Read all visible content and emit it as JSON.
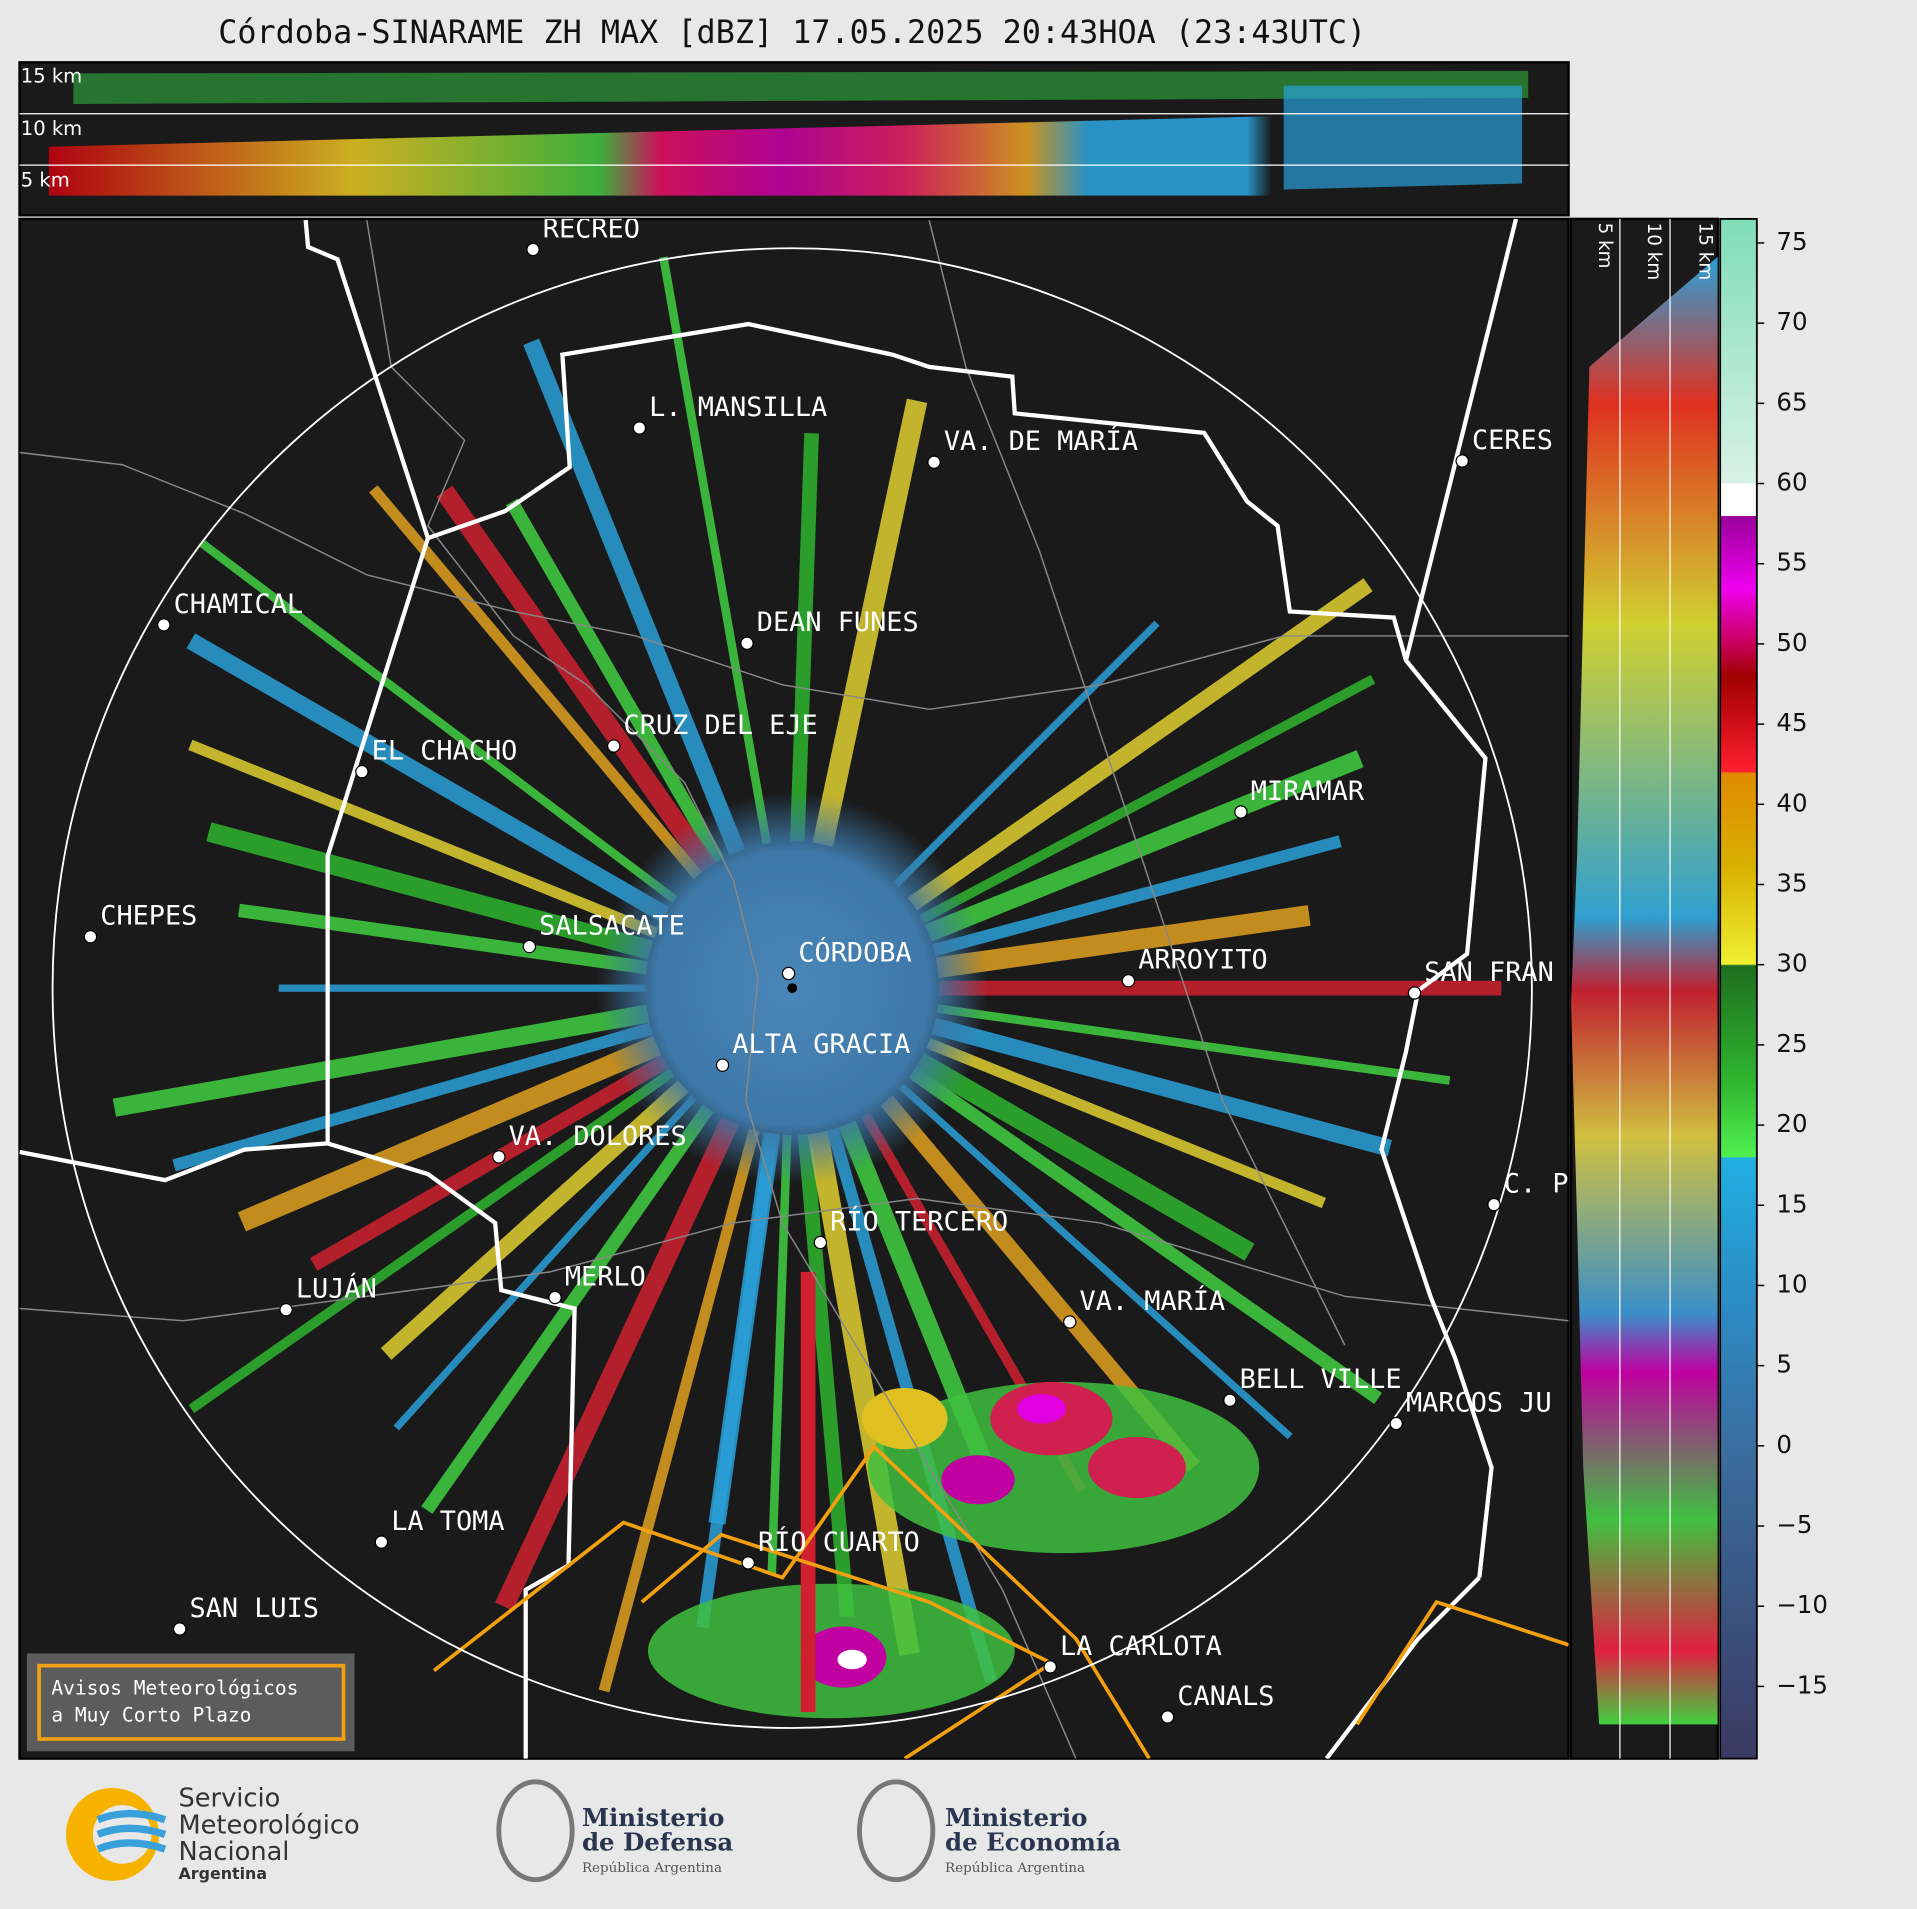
{
  "title": "Córdoba-SINARAME ZH MAX [dBZ] 17.05.2025 20:43HOA (23:43UTC)",
  "top_panel": {
    "heights": [
      "15 km",
      "10 km",
      "5 km"
    ]
  },
  "side_panel": {
    "heights": [
      "5 km",
      "10 km",
      "15 km"
    ]
  },
  "cities": [
    "RECREO",
    "L. MANSILLA",
    "VA. DE MARÍA",
    "CERES",
    "CHAMICAL",
    "DEAN FUNES",
    "CRUZ DEL EJE",
    "EL CHACHO",
    "MIRAMAR",
    "CHEPES",
    "SALSACATE",
    "CÓRDOBA",
    "ARROYITO",
    "SAN FRAN",
    "ALTA GRACIA",
    "VA. DOLORES",
    "C. P",
    "RÍO TERCERO",
    "MERLO",
    "LUJÁN",
    "VA. MARÍA",
    "BELL VILLE",
    "MARCOS JU",
    "LA TOMA",
    "RÍO CUARTO",
    "SAN LUIS",
    "LA CARLOTA",
    "CANALS"
  ],
  "warning_box": [
    "Avisos Meteorológicos",
    "a Muy Corto Plazo"
  ],
  "colorbar": {
    "lim": [
      -19.5,
      76.5
    ],
    "ticks": [
      75,
      70,
      65,
      60,
      55,
      50,
      45,
      40,
      35,
      30,
      25,
      20,
      15,
      10,
      5,
      0,
      {
        "value": -5,
        "label": "−5"
      },
      {
        "value": -10,
        "label": "−10"
      },
      {
        "value": -15,
        "label": "−15"
      }
    ]
  },
  "footer": {
    "smn": [
      "Servicio",
      "Meteorológico",
      "Nacional",
      "Argentina"
    ],
    "defensa": [
      "Ministerio",
      "de Defensa",
      "República Argentina"
    ],
    "economia": [
      "Ministerio",
      "de Economía",
      "República Argentina"
    ]
  }
}
